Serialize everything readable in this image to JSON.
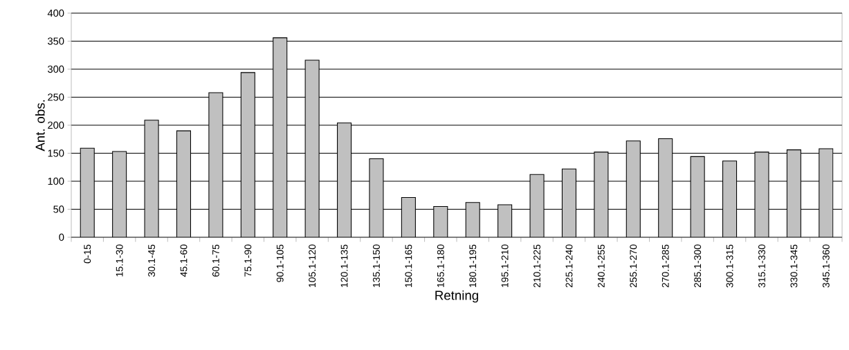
{
  "chart_data": {
    "type": "bar",
    "xlabel": "Retning",
    "ylabel": "Ant. obs.",
    "categories": [
      "0-15",
      "15.1-30",
      "30.1-45",
      "45.1-60",
      "60.1-75",
      "75.1-90",
      "90.1-105",
      "105.1-120",
      "120.1-135",
      "135.1-150",
      "150.1-165",
      "165.1-180",
      "180.1-195",
      "195.1-210",
      "210.1-225",
      "225.1-240",
      "240.1-255",
      "255.1-270",
      "270.1-285",
      "285.1-300",
      "300.1-315",
      "315.1-330",
      "330.1-345",
      "345.1-360"
    ],
    "values": [
      159,
      153,
      209,
      190,
      258,
      294,
      356,
      316,
      204,
      140,
      71,
      55,
      62,
      58,
      112,
      122,
      152,
      172,
      176,
      144,
      136,
      152,
      156,
      158
    ],
    "color": "#c0c0c0",
    "ylim": [
      0,
      400
    ],
    "yticks": [
      0,
      50,
      100,
      150,
      200,
      250,
      300,
      350,
      400
    ],
    "grid": "y"
  }
}
